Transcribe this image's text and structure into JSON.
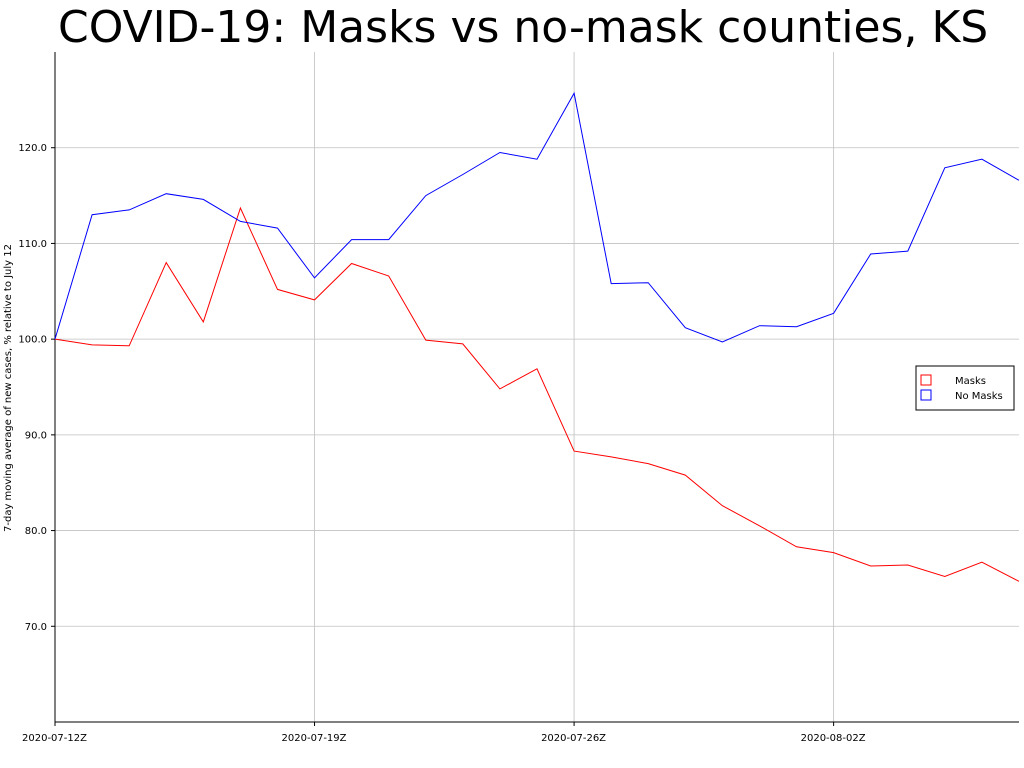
{
  "chart_data": {
    "type": "line",
    "title": "COVID-19: Masks vs no-mask counties, KS",
    "xlabel": "",
    "ylabel": "7-day moving average of new cases, % relative to July 12",
    "x": [
      "2020-07-12",
      "2020-07-13",
      "2020-07-14",
      "2020-07-15",
      "2020-07-16",
      "2020-07-17",
      "2020-07-18",
      "2020-07-19",
      "2020-07-20",
      "2020-07-21",
      "2020-07-22",
      "2020-07-23",
      "2020-07-24",
      "2020-07-25",
      "2020-07-26",
      "2020-07-27",
      "2020-07-28",
      "2020-07-29",
      "2020-07-30",
      "2020-07-31",
      "2020-08-01",
      "2020-08-02",
      "2020-08-03",
      "2020-08-04",
      "2020-08-05",
      "2020-08-06",
      "2020-08-07"
    ],
    "x_ticks": [
      "2020-07-12Z",
      "2020-07-19Z",
      "2020-07-26Z",
      "2020-08-02Z"
    ],
    "x_tick_dates": [
      "2020-07-12",
      "2020-07-19",
      "2020-07-26",
      "2020-08-02"
    ],
    "ylim": [
      60,
      130
    ],
    "y_ticks": [
      "70.0",
      "80.0",
      "90.0",
      "100.0",
      "110.0",
      "120.0"
    ],
    "y_tick_values": [
      70,
      80,
      90,
      100,
      110,
      120
    ],
    "grid": true,
    "legend_position": "right",
    "series": [
      {
        "name": "Masks",
        "color": "#ff0000",
        "values": [
          100.0,
          99.4,
          99.3,
          108.0,
          101.8,
          113.7,
          105.2,
          104.1,
          107.9,
          106.6,
          99.9,
          99.5,
          94.8,
          96.9,
          88.3,
          87.7,
          87.0,
          85.8,
          82.6,
          80.5,
          78.3,
          77.7,
          76.3,
          76.4,
          75.2,
          76.7,
          74.7
        ]
      },
      {
        "name": "No Masks",
        "color": "#0000ff",
        "values": [
          100.0,
          113.0,
          113.5,
          115.2,
          114.6,
          112.3,
          111.6,
          106.4,
          110.4,
          110.4,
          115.0,
          117.2,
          119.5,
          118.8,
          125.7,
          105.8,
          105.9,
          101.2,
          99.7,
          101.4,
          101.3,
          102.7,
          108.9,
          109.2,
          117.9,
          118.8,
          116.6
        ]
      }
    ]
  }
}
